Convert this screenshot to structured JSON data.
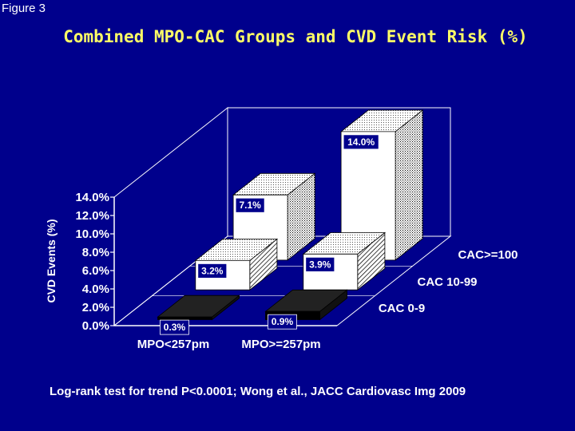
{
  "figure_label": "Figure 3",
  "footnote": "Log-rank test for trend P<0.0001;  Wong et al., JACC Cardiovasc Img 2009",
  "colors": {
    "background": "#00008c",
    "title": "#ffff66",
    "text": "#ffffff",
    "label_box": "#00008c"
  },
  "chart_data": {
    "type": "bar",
    "subtype": "3d-grouped",
    "title": "Combined MPO-CAC Groups and CVD Event Risk (%)",
    "xlabel": "",
    "ylabel": "CVD Events (%)",
    "ylim": [
      0,
      14
    ],
    "y_ticks": [
      "0.0%",
      "2.0%",
      "4.0%",
      "6.0%",
      "8.0%",
      "10.0%",
      "12.0%",
      "14.0%"
    ],
    "categories": [
      "MPO<257pm",
      "MPO>=257pm"
    ],
    "series": [
      {
        "name": "CAC 0-9",
        "values": [
          0.3,
          0.9
        ],
        "labels": [
          "0.3%",
          "0.9%"
        ]
      },
      {
        "name": "CAC 10-99",
        "values": [
          3.2,
          3.9
        ],
        "labels": [
          "3.2%",
          "3.9%"
        ]
      },
      {
        "name": "CAC>=100",
        "values": [
          7.1,
          14.0
        ],
        "labels": [
          "7.1%",
          "14.0%"
        ]
      }
    ]
  }
}
